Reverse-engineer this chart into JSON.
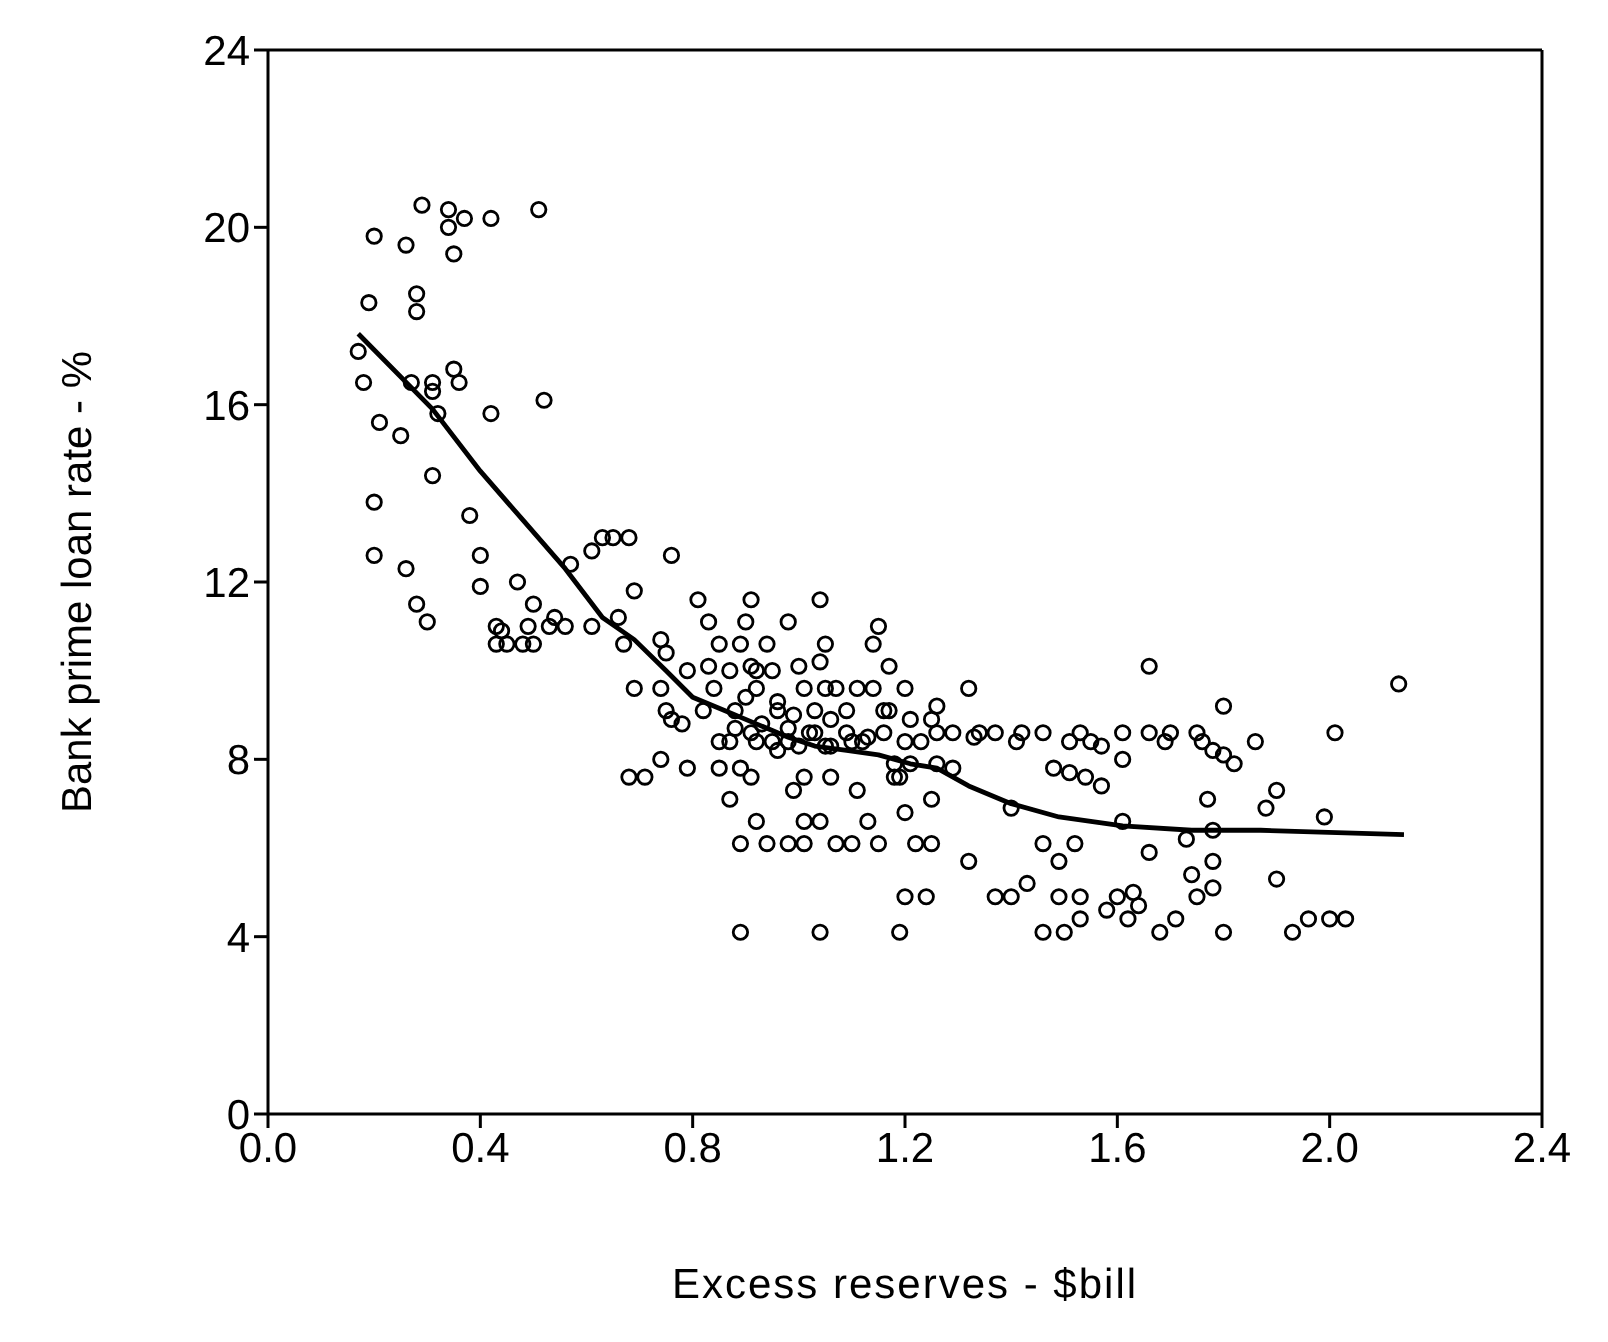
{
  "chart_data": {
    "type": "scatter",
    "xlabel": "Excess reserves - $bill",
    "ylabel": "Bank prime loan rate - %",
    "xlim": [
      0,
      2.4
    ],
    "ylim": [
      0,
      24
    ],
    "xticks": [
      {
        "value": 0,
        "label": "0.0"
      },
      {
        "value": 0.4,
        "label": "0.4"
      },
      {
        "value": 0.8,
        "label": "0.8"
      },
      {
        "value": 1.2,
        "label": "1.2"
      },
      {
        "value": 1.6,
        "label": "1.6"
      },
      {
        "value": 2,
        "label": "2.0"
      },
      {
        "value": 2.4,
        "label": "2.4"
      }
    ],
    "yticks": [
      0,
      4,
      8,
      12,
      16,
      20,
      24
    ],
    "marker": "circle",
    "series": [
      {
        "color": "#000000",
        "x": [
          0.17,
          0.18,
          0.19,
          0.2,
          0.21,
          0.2,
          0.2,
          0.25,
          0.26,
          0.26,
          0.27,
          0.28,
          0.28,
          0.28,
          0.29,
          0.3,
          0.31,
          0.31,
          0.31,
          0.32,
          0.34,
          0.34,
          0.35,
          0.35,
          0.36,
          0.37,
          0.38,
          0.4,
          0.4,
          0.42,
          0.42,
          0.43,
          0.44,
          0.43,
          0.45,
          0.48,
          0.5,
          0.47,
          0.5,
          0.49,
          0.51,
          0.52,
          0.53,
          0.54,
          0.56,
          0.57,
          0.61,
          0.61,
          0.63,
          0.65,
          0.68,
          0.66,
          0.67,
          0.69,
          0.69,
          0.68,
          0.71,
          0.74,
          0.74,
          0.74,
          0.75,
          0.76,
          0.75,
          0.76,
          0.78,
          0.79,
          0.79,
          0.81,
          0.82,
          0.83,
          0.83,
          0.84,
          0.85,
          0.85,
          0.85,
          0.87,
          0.87,
          0.87,
          0.88,
          0.88,
          0.89,
          0.89,
          0.89,
          0.89,
          0.9,
          0.9,
          0.91,
          0.91,
          0.91,
          0.92,
          0.92,
          0.91,
          0.92,
          0.92,
          0.93,
          0.94,
          0.94,
          0.95,
          0.95,
          0.96,
          0.96,
          0.96,
          0.98,
          0.98,
          0.98,
          0.98,
          0.99,
          0.99,
          1.0,
          1.0,
          1.01,
          1.01,
          1.01,
          1.01,
          1.02,
          1.03,
          1.03,
          1.04,
          1.04,
          1.04,
          1.04,
          1.05,
          1.05,
          1.05,
          1.06,
          1.06,
          1.06,
          1.07,
          1.07,
          1.09,
          1.09,
          1.1,
          1.1,
          1.11,
          1.11,
          1.12,
          1.13,
          1.13,
          1.14,
          1.14,
          1.15,
          1.15,
          1.16,
          1.16,
          1.17,
          1.17,
          1.18,
          1.18,
          1.19,
          1.19,
          1.2,
          1.2,
          1.21,
          1.2,
          1.2,
          1.21,
          1.22,
          1.23,
          1.24,
          1.25,
          1.25,
          1.25,
          1.26,
          1.26,
          1.26,
          1.29,
          1.29,
          1.32,
          1.32,
          1.33,
          1.34,
          1.37,
          1.37,
          1.4,
          1.4,
          1.41,
          1.42,
          1.43,
          1.46,
          1.46,
          1.46,
          1.48,
          1.49,
          1.49,
          1.5,
          1.51,
          1.51,
          1.52,
          1.53,
          1.53,
          1.53,
          1.54,
          1.55,
          1.57,
          1.57,
          1.58,
          1.6,
          1.61,
          1.61,
          1.61,
          1.62,
          1.63,
          1.64,
          1.66,
          1.66,
          1.66,
          1.68,
          1.69,
          1.7,
          1.71,
          1.73,
          1.74,
          1.75,
          1.75,
          1.76,
          1.77,
          1.78,
          1.78,
          1.78,
          1.78,
          1.8,
          1.8,
          1.8,
          1.82,
          1.86,
          1.88,
          1.9,
          1.9,
          1.93,
          1.96,
          1.99,
          2.0,
          2.01,
          2.03,
          2.13
        ],
        "values": [
          17.2,
          16.5,
          18.3,
          19.8,
          15.6,
          13.8,
          12.6,
          15.3,
          12.3,
          19.6,
          16.5,
          18.5,
          18.1,
          11.5,
          20.5,
          11.1,
          16.5,
          16.3,
          14.4,
          15.8,
          20.4,
          20.0,
          16.8,
          19.4,
          16.5,
          20.2,
          13.5,
          12.6,
          11.9,
          20.2,
          15.8,
          11.0,
          10.9,
          10.6,
          10.6,
          10.6,
          10.6,
          12.0,
          11.5,
          11.0,
          20.4,
          16.1,
          11.0,
          11.2,
          11.0,
          12.4,
          12.7,
          11.0,
          13.0,
          13.0,
          13.0,
          11.2,
          10.6,
          11.8,
          9.6,
          7.6,
          7.6,
          10.7,
          9.6,
          8.0,
          10.4,
          12.6,
          9.1,
          8.9,
          8.8,
          10.0,
          7.8,
          11.6,
          9.1,
          11.1,
          10.1,
          9.6,
          10.6,
          8.4,
          7.8,
          7.1,
          10.0,
          8.4,
          9.1,
          8.7,
          4.1,
          7.8,
          6.1,
          10.6,
          11.1,
          9.4,
          7.6,
          10.1,
          11.6,
          9.6,
          6.6,
          8.6,
          8.4,
          10.0,
          8.8,
          10.6,
          6.1,
          10.0,
          8.4,
          8.2,
          9.3,
          9.1,
          8.7,
          11.1,
          8.4,
          6.1,
          7.3,
          9.0,
          10.1,
          8.3,
          7.6,
          6.6,
          6.1,
          9.6,
          8.6,
          9.1,
          8.6,
          11.6,
          6.6,
          10.2,
          4.1,
          8.3,
          9.6,
          10.6,
          8.3,
          8.9,
          7.6,
          9.6,
          6.1,
          9.1,
          8.6,
          6.1,
          8.4,
          9.6,
          7.3,
          8.4,
          6.6,
          8.5,
          10.6,
          9.6,
          11.0,
          6.1,
          9.1,
          8.6,
          10.1,
          9.1,
          7.9,
          7.6,
          4.1,
          7.6,
          9.6,
          8.4,
          8.9,
          4.9,
          6.8,
          7.9,
          6.1,
          8.4,
          4.9,
          7.1,
          6.1,
          8.9,
          8.6,
          7.9,
          9.2,
          8.6,
          7.8,
          9.6,
          5.7,
          8.5,
          8.6,
          4.9,
          8.6,
          4.9,
          6.9,
          8.4,
          8.6,
          5.2,
          6.1,
          8.6,
          4.1,
          7.8,
          4.9,
          5.7,
          4.1,
          7.7,
          8.4,
          6.1,
          4.4,
          4.9,
          8.6,
          7.6,
          8.4,
          8.3,
          7.4,
          4.6,
          4.9,
          8.0,
          6.6,
          8.6,
          4.4,
          5.0,
          4.7,
          5.9,
          10.1,
          8.6,
          4.1,
          8.4,
          8.6,
          4.4,
          6.2,
          5.4,
          4.9,
          8.6,
          8.4,
          7.1,
          5.7,
          5.1,
          6.4,
          8.2,
          9.2,
          8.1,
          4.1,
          7.9,
          8.4,
          6.9,
          7.3,
          5.3,
          4.1,
          4.4,
          6.7,
          4.4,
          8.6,
          4.4,
          9.7
        ]
      },
      {
        "type": "line",
        "color": "#000000",
        "marker": "none",
        "x": [
          0.17,
          0.31,
          0.4,
          0.48,
          0.56,
          0.63,
          0.69,
          0.75,
          0.8,
          0.86,
          0.92,
          0.98,
          1.03,
          1.09,
          1.15,
          1.21,
          1.26,
          1.32,
          1.4,
          1.49,
          1.61,
          1.74,
          1.87,
          2.14
        ],
        "values": [
          17.6,
          15.9,
          14.5,
          13.4,
          12.3,
          11.2,
          10.7,
          10.0,
          9.4,
          9.1,
          8.8,
          8.5,
          8.3,
          8.2,
          8.1,
          7.9,
          7.8,
          7.4,
          7.0,
          6.7,
          6.5,
          6.4,
          6.4,
          6.3
        ]
      }
    ]
  }
}
